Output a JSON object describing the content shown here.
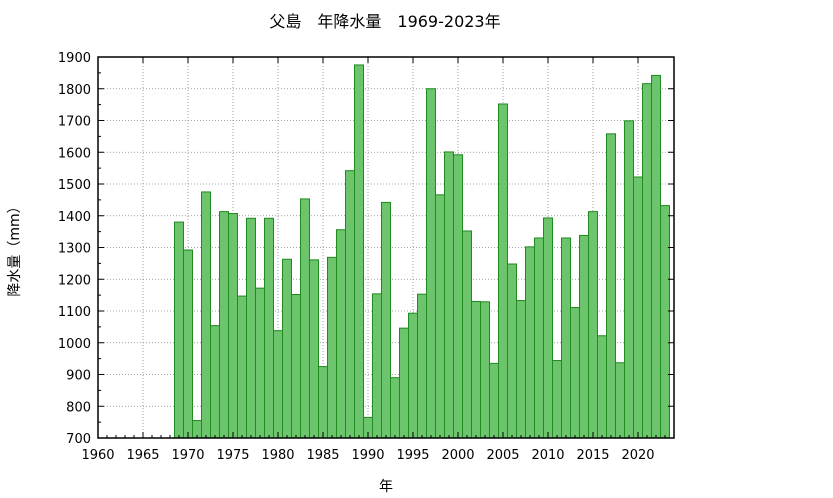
{
  "chart_data": {
    "type": "bar",
    "title": "父島　年降水量　1969-2023年",
    "xlabel": "年",
    "ylabel": "降水量（mm）",
    "xlim": [
      1960,
      2024
    ],
    "ylim": [
      700,
      1900
    ],
    "xticks": [
      1960,
      1965,
      1970,
      1975,
      1980,
      1985,
      1990,
      1995,
      2000,
      2005,
      2010,
      2015,
      2020
    ],
    "yticks": [
      700,
      800,
      900,
      1000,
      1100,
      1200,
      1300,
      1400,
      1500,
      1600,
      1700,
      1800,
      1900
    ],
    "grid": true,
    "colors": {
      "bar_fill": "#6cc46c",
      "bar_stroke": "#1f8a1f"
    },
    "years": [
      1969,
      1970,
      1971,
      1972,
      1973,
      1974,
      1975,
      1976,
      1977,
      1978,
      1979,
      1980,
      1981,
      1982,
      1983,
      1984,
      1985,
      1986,
      1987,
      1988,
      1989,
      1990,
      1991,
      1992,
      1993,
      1994,
      1995,
      1996,
      1997,
      1998,
      1999,
      2000,
      2001,
      2002,
      2003,
      2004,
      2005,
      2006,
      2007,
      2008,
      2009,
      2010,
      2011,
      2012,
      2013,
      2014,
      2015,
      2016,
      2017,
      2018,
      2019,
      2020,
      2021,
      2022,
      2023
    ],
    "values": [
      1380,
      1292,
      755,
      1475,
      1054,
      1413,
      1407,
      1147,
      1392,
      1172,
      1392,
      1038,
      1263,
      1152,
      1453,
      1261,
      925,
      1269,
      1356,
      1542,
      1875,
      765,
      1154,
      1442,
      890,
      1046,
      1093,
      1153,
      1800,
      1466,
      1601,
      1592,
      1352,
      1130,
      1129,
      935,
      1752,
      1248,
      1133,
      1302,
      1330,
      1393,
      944,
      1330,
      1111,
      1338,
      1413,
      1022,
      1658,
      937,
      1699,
      1522,
      1816,
      1842,
      1432
    ]
  }
}
